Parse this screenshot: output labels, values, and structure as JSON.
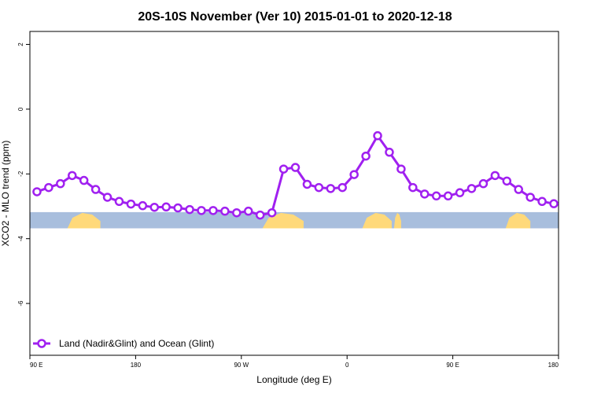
{
  "chart_data": {
    "type": "line",
    "title": "20S-10S November (Ver 10)   2015-01-01 to 2020-12-18",
    "xlabel": "Longitude (deg E)",
    "ylabel": "XCO2 - MLO trend (ppm)",
    "x_ticks": [
      {
        "value": 90,
        "label": "90 E"
      },
      {
        "value": 180,
        "label": "180"
      },
      {
        "value": 270,
        "label": "90 W"
      },
      {
        "value": 360,
        "label": "0"
      },
      {
        "value": 450,
        "label": "90 E"
      },
      {
        "value": 540,
        "label": "180"
      }
    ],
    "y_ticks": [
      {
        "value": 2,
        "label": "2"
      },
      {
        "value": 0,
        "label": "0"
      },
      {
        "value": -2,
        "label": "-2"
      },
      {
        "value": -4,
        "label": "-4"
      },
      {
        "value": -6,
        "label": "-6"
      }
    ],
    "xlim": [
      90,
      540
    ],
    "ylim": [
      -7.6,
      2.4
    ],
    "grid": false,
    "legend_position": "bottom-left",
    "colors": {
      "series": "#a020f0",
      "ocean": "#a8bedd",
      "land": "#ffd97a"
    },
    "series": [
      {
        "name": "Land (Nadir&Glint) and Ocean (Glint)",
        "x": [
          96,
          106,
          116,
          126,
          136,
          146,
          156,
          166,
          176,
          186,
          196,
          206,
          216,
          226,
          236,
          246,
          256,
          266,
          276,
          286,
          296,
          306,
          316,
          326,
          336,
          346,
          356,
          366,
          376,
          386,
          396,
          406,
          416,
          426,
          436,
          446,
          456,
          466,
          476,
          486,
          496,
          506,
          516,
          526,
          536
        ],
        "y": [
          -2.55,
          -2.42,
          -2.3,
          -2.05,
          -2.2,
          -2.48,
          -2.72,
          -2.85,
          -2.93,
          -2.98,
          -3.03,
          -3.02,
          -3.05,
          -3.1,
          -3.13,
          -3.13,
          -3.15,
          -3.2,
          -3.15,
          -3.27,
          -3.2,
          -1.85,
          -1.8,
          -2.32,
          -2.42,
          -2.45,
          -2.42,
          -2.02,
          -1.45,
          -0.82,
          -1.33,
          -1.85,
          -2.42,
          -2.62,
          -2.68,
          -2.68,
          -2.58,
          -2.45,
          -2.3,
          -2.05,
          -2.22,
          -2.48,
          -2.72,
          -2.85,
          -2.92
        ]
      }
    ],
    "map_strip": {
      "y_range": [
        -3.18,
        -3.68
      ],
      "land_spans": [
        [
          122,
          150
        ],
        [
          288,
          323
        ],
        [
          373,
          398
        ],
        [
          400,
          406
        ],
        [
          495,
          516
        ]
      ]
    }
  }
}
